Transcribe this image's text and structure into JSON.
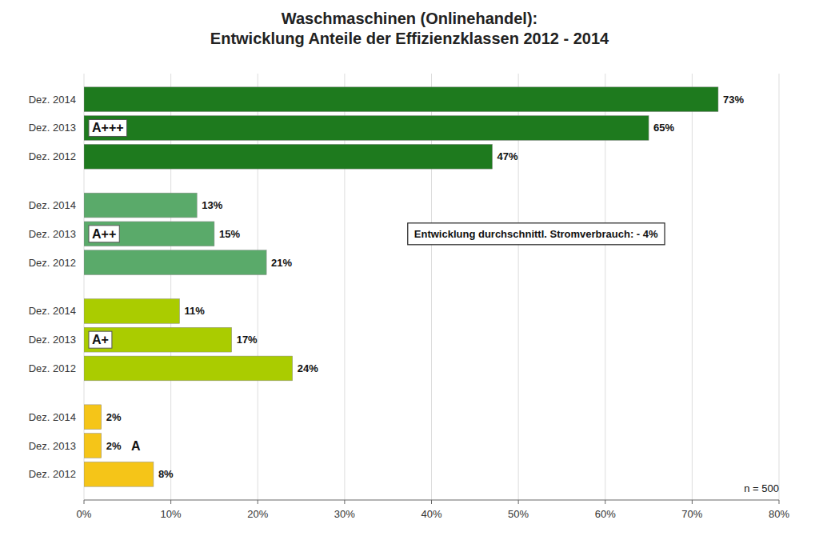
{
  "chart_data": {
    "type": "bar",
    "orientation": "horizontal",
    "title": "Waschmaschinen (Onlinehandel):\nEntwicklung Anteile der Effizienzklassen 2012 - 2014",
    "categories": [
      "Dez. 2014",
      "Dez. 2013",
      "Dez. 2012"
    ],
    "series": [
      {
        "name": "A+++",
        "color": "#1e7a1e",
        "values": [
          73,
          65,
          47
        ],
        "value_labels": [
          "73%",
          "65%",
          "47%"
        ]
      },
      {
        "name": "A++",
        "color": "#5aaa6a",
        "values": [
          13,
          15,
          21
        ],
        "value_labels": [
          "13%",
          "15%",
          "21%"
        ]
      },
      {
        "name": "A+",
        "color": "#aacc00",
        "values": [
          11,
          17,
          24
        ],
        "value_labels": [
          "11%",
          "17%",
          "24%"
        ]
      },
      {
        "name": "A",
        "color": "#f5c518",
        "values": [
          2,
          2,
          8
        ],
        "value_labels": [
          "2%",
          "2%",
          "8%"
        ]
      }
    ],
    "xlim": [
      0,
      80
    ],
    "xticks": [
      {
        "value": 0,
        "label": "0%"
      },
      {
        "value": 10,
        "label": "10%"
      },
      {
        "value": 20,
        "label": "20%"
      },
      {
        "value": 30,
        "label": "30%"
      },
      {
        "value": 40,
        "label": "40%"
      },
      {
        "value": 50,
        "label": "50%"
      },
      {
        "value": 60,
        "label": "60%"
      },
      {
        "value": 70,
        "label": "70%"
      },
      {
        "value": 80,
        "label": "80%"
      }
    ],
    "grid": true,
    "data_labels": true,
    "annotations": [
      "Entwicklung durchschnittl. Stromverbrauch: - 4%",
      "n = 500"
    ]
  }
}
